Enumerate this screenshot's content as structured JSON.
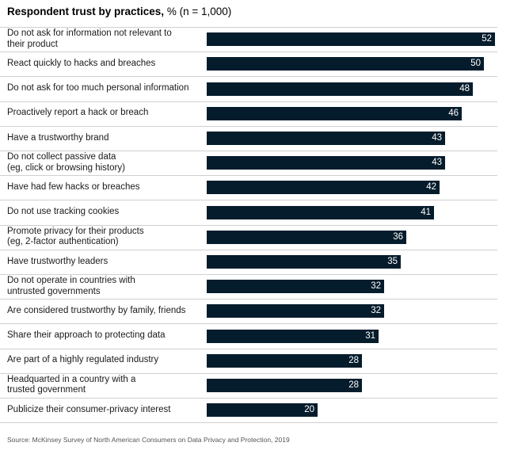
{
  "title": {
    "main": "Respondent trust by practices,",
    "sub": "% (n = 1,000)"
  },
  "source": "Source: McKinsey Survey of North American Consumers on Data Privacy and Protection, 2019",
  "colors": {
    "bar": "#051c2c",
    "value_text": "#ffffff",
    "divider": "#d0d0d0"
  },
  "chart_data": {
    "type": "bar",
    "orientation": "horizontal",
    "title": "Respondent trust by practices, % (n = 1,000)",
    "categories": [
      "Do not ask for information not relevant to\ntheir product",
      "React quickly to hacks and breaches",
      "Do not ask for too much personal information",
      "Proactively report a hack or breach",
      "Have a trustworthy brand",
      "Do not collect passive data\n(eg, click or browsing history)",
      "Have had few hacks or breaches",
      "Do not use tracking cookies",
      "Promote privacy for their products\n(eg, 2-factor authentication)",
      "Have trustworthy leaders",
      "Do not operate in countries with\nuntrusted governments",
      "Are considered trustworthy by family, friends",
      "Share their approach to protecting data",
      "Are part of a highly regulated industry",
      "Headquarted in a country with a\ntrusted government",
      "Publicize their consumer-privacy interest"
    ],
    "values": [
      52,
      50,
      48,
      46,
      43,
      43,
      42,
      41,
      36,
      35,
      32,
      32,
      31,
      28,
      28,
      20
    ],
    "xlim": [
      0,
      52
    ],
    "grid": false,
    "legend": "none"
  }
}
